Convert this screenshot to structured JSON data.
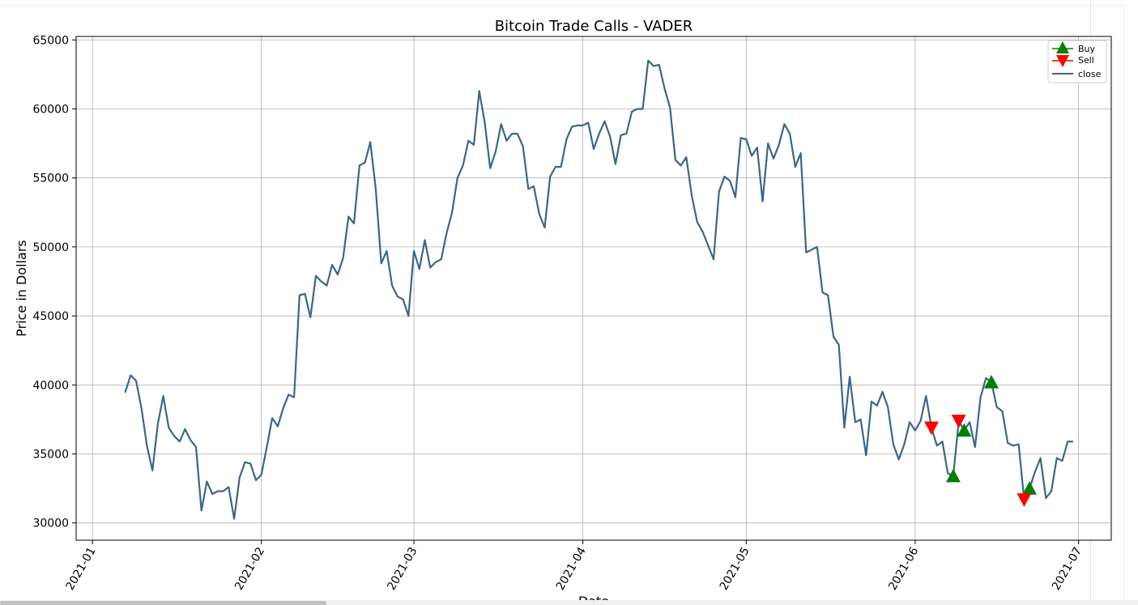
{
  "chart_data": {
    "type": "line",
    "title": "Bitcoin Trade Calls - VADER",
    "xlabel": "Date",
    "ylabel": "Price in Dollars",
    "x_tick_labels": [
      "2021-01",
      "2021-02",
      "2021-03",
      "2021-04",
      "2021-05",
      "2021-06",
      "2021-07"
    ],
    "x_tick_dates": [
      "2021-01-01",
      "2021-02-01",
      "2021-03-01",
      "2021-04-01",
      "2021-05-01",
      "2021-06-01",
      "2021-07-01"
    ],
    "y_tick_labels": [
      "30000",
      "35000",
      "40000",
      "45000",
      "50000",
      "55000",
      "60000",
      "65000"
    ],
    "xlim": [
      "2020-12-29",
      "2021-07-07"
    ],
    "ylim": [
      28750,
      65250
    ],
    "grid": true,
    "legend_position": "top-right",
    "legend": [
      "Buy",
      "Sell",
      "close"
    ],
    "colors": {
      "close": "#3b6689",
      "buy": "#008000",
      "sell": "#ff0000",
      "grid": "#b0b0b0"
    },
    "series": [
      {
        "name": "close",
        "x_start": "2021-01-07",
        "x_step_days": 1,
        "values": [
          39450,
          40700,
          40300,
          38300,
          35600,
          33800,
          37200,
          39200,
          36900,
          36300,
          35900,
          36800,
          36000,
          35500,
          30900,
          33000,
          32100,
          32300,
          32300,
          32600,
          30300,
          33300,
          34400,
          34300,
          33100,
          33500,
          35500,
          37600,
          37000,
          38300,
          39300,
          39100,
          46500,
          46600,
          44900,
          47900,
          47500,
          47200,
          48700,
          48000,
          49200,
          52200,
          51700,
          55900,
          56100,
          57600,
          54200,
          48800,
          49700,
          47200,
          46400,
          46200,
          45000,
          49700,
          48400,
          50500,
          48500,
          48900,
          49100,
          51000,
          52500,
          55000,
          55900,
          57700,
          57400,
          61300,
          59000,
          55700,
          56900,
          58900,
          57700,
          58200,
          58200,
          57300,
          54200,
          54400,
          52400,
          51400,
          55100,
          55800,
          55800,
          57800,
          58700,
          58800,
          58800,
          59000,
          57100,
          58200,
          59100,
          58000,
          56000,
          58100,
          58200,
          59800,
          60000,
          60000,
          63500,
          63100,
          63200,
          61500,
          60100,
          56300,
          55900,
          56500,
          53700,
          51800,
          51100,
          50100,
          49100,
          54000,
          55100,
          54800,
          53600,
          57900,
          57800,
          56600,
          57200,
          53300,
          57500,
          56400,
          57400,
          58900,
          58200,
          55800,
          56800,
          49600,
          49800,
          50000,
          46700,
          46500,
          43500,
          42900,
          36900,
          40600,
          37300,
          37500,
          34900,
          38800,
          38500,
          39500,
          38400,
          35700,
          34600,
          35700,
          37300,
          36700,
          37400,
          39200,
          36900,
          35600,
          35900,
          33600,
          33400,
          37400,
          36700,
          37300,
          35500,
          39100,
          40500,
          40200,
          38400,
          38100,
          35800,
          35600,
          35700,
          31700,
          32500,
          33700,
          34700,
          31800,
          32300,
          34700,
          34500,
          35900,
          35900
        ]
      }
    ],
    "buy_signals": [
      {
        "x": "2021-06-08",
        "y": 33400
      },
      {
        "x": "2021-06-10",
        "y": 36700
      },
      {
        "x": "2021-06-15",
        "y": 40200
      },
      {
        "x": "2021-06-22",
        "y": 32500
      }
    ],
    "sell_signals": [
      {
        "x": "2021-06-04",
        "y": 36900
      },
      {
        "x": "2021-06-09",
        "y": 37400
      },
      {
        "x": "2021-06-21",
        "y": 31700
      }
    ]
  }
}
